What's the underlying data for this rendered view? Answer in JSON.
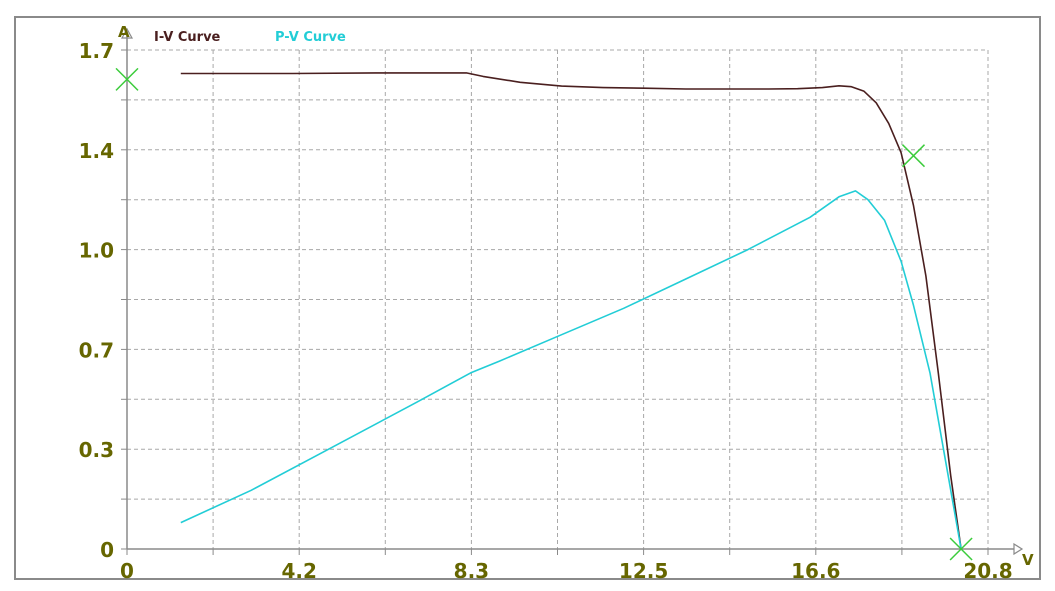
{
  "chart_data": {
    "type": "line",
    "xlabel": "V",
    "ylabel": "A",
    "xlim": [
      0,
      20.8
    ],
    "ylim": [
      0,
      1.7
    ],
    "x_ticks": [
      "0",
      "4.2",
      "8.3",
      "12.5",
      "16.6",
      "20.8"
    ],
    "y_ticks": [
      "0",
      "0.3",
      "0.7",
      "1.0",
      "1.4",
      "1.7"
    ],
    "grid": true,
    "legend_position": "top-left",
    "series": [
      {
        "name": "I-V Curve",
        "color": "#4a1f1f",
        "points": [
          [
            1.3,
            1.62
          ],
          [
            4.0,
            1.62
          ],
          [
            6.0,
            1.622
          ],
          [
            8.2,
            1.622
          ],
          [
            8.6,
            1.61
          ],
          [
            9.5,
            1.59
          ],
          [
            10.5,
            1.577
          ],
          [
            11.5,
            1.572
          ],
          [
            12.5,
            1.57
          ],
          [
            13.5,
            1.567
          ],
          [
            14.5,
            1.567
          ],
          [
            15.5,
            1.567
          ],
          [
            16.2,
            1.568
          ],
          [
            16.8,
            1.572
          ],
          [
            17.2,
            1.578
          ],
          [
            17.5,
            1.575
          ],
          [
            17.8,
            1.56
          ],
          [
            18.1,
            1.52
          ],
          [
            18.4,
            1.45
          ],
          [
            18.7,
            1.35
          ],
          [
            19.0,
            1.17
          ],
          [
            19.3,
            0.93
          ],
          [
            19.6,
            0.6
          ],
          [
            19.9,
            0.25
          ],
          [
            20.15,
            0.0
          ]
        ]
      },
      {
        "name": "P-V Curve",
        "color": "#22cdd6",
        "points": [
          [
            1.3,
            0.09
          ],
          [
            3.0,
            0.2
          ],
          [
            5.0,
            0.35
          ],
          [
            7.0,
            0.5
          ],
          [
            8.3,
            0.6
          ],
          [
            9.0,
            0.64
          ],
          [
            10.5,
            0.73
          ],
          [
            12.0,
            0.82
          ],
          [
            13.5,
            0.92
          ],
          [
            15.0,
            1.02
          ],
          [
            16.5,
            1.13
          ],
          [
            17.2,
            1.2
          ],
          [
            17.6,
            1.22
          ],
          [
            17.9,
            1.19
          ],
          [
            18.3,
            1.12
          ],
          [
            18.7,
            0.98
          ],
          [
            19.0,
            0.83
          ],
          [
            19.4,
            0.6
          ],
          [
            19.8,
            0.28
          ],
          [
            20.15,
            0.0
          ]
        ]
      }
    ],
    "markers": [
      {
        "x": 0,
        "y": 1.6,
        "color": "#3ccc3c"
      },
      {
        "x": 19.0,
        "y": 1.34,
        "color": "#3ccc3c"
      },
      {
        "x": 20.15,
        "y": 0.0,
        "color": "#3ccc3c"
      }
    ]
  },
  "colors": {
    "axis": "#8a8a8a",
    "tick_label": "#666600",
    "grid": "#a8a8a8"
  }
}
